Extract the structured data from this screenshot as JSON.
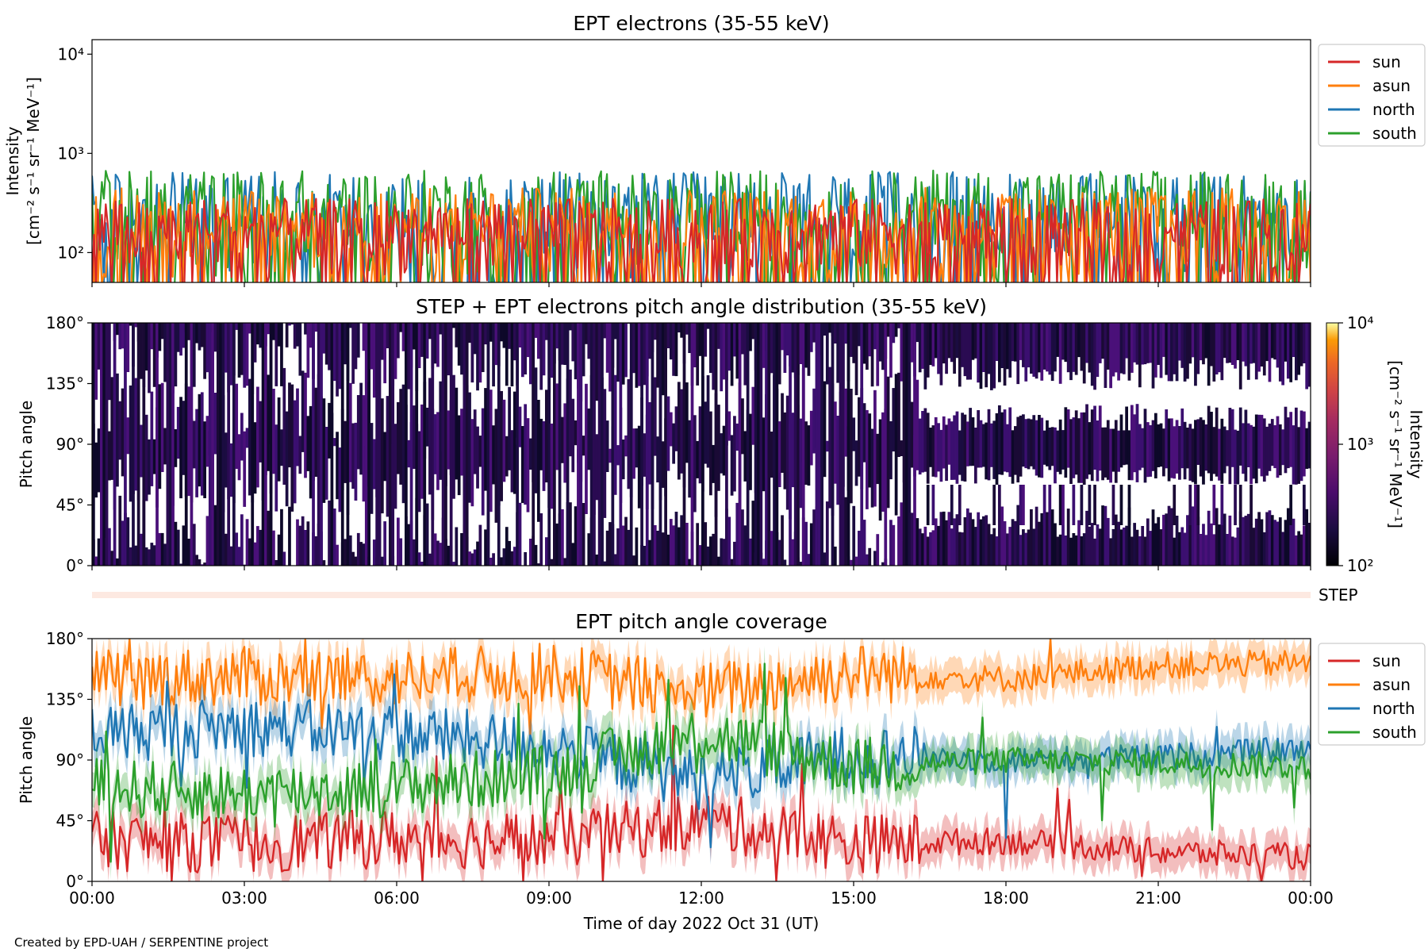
{
  "chart_data": [
    {
      "type": "line",
      "title": "EPT electrons (35-55 keV)",
      "ylabel_line1": "Intensity",
      "ylabel_line2": "[cm⁻² s⁻¹ sr⁻¹ MeV⁻¹]",
      "yscale": "log",
      "ylim": [
        50,
        14000
      ],
      "yticks": [
        "10²",
        "10³",
        "10⁴"
      ],
      "legend_position": "outside-right",
      "series": [
        {
          "name": "sun",
          "color": "#d62728",
          "typical_range": [
            50,
            350
          ]
        },
        {
          "name": "asun",
          "color": "#ff7f0e",
          "typical_range": [
            50,
            450
          ]
        },
        {
          "name": "north",
          "color": "#1f77b4",
          "typical_range": [
            50,
            650
          ]
        },
        {
          "name": "south",
          "color": "#2ca02c",
          "typical_range": [
            50,
            680
          ]
        }
      ]
    },
    {
      "type": "heatmap",
      "title": "STEP + EPT electrons pitch angle distribution (35-55 keV)",
      "ylabel": "Pitch angle",
      "ylim": [
        0,
        180
      ],
      "yticks": [
        "0°",
        "45°",
        "90°",
        "135°",
        "180°"
      ],
      "colorbar": {
        "label_line1": "Intensity",
        "label_line2": "[cm⁻² s⁻¹ sr⁻¹ MeV⁻¹]",
        "scale": "log",
        "range": [
          100,
          10000
        ],
        "ticks": [
          "10²",
          "10³",
          "10⁴"
        ],
        "colormap": "inferno"
      }
    },
    {
      "type": "bar",
      "label": "STEP"
    },
    {
      "type": "line",
      "title": "EPT pitch angle coverage",
      "ylabel": "Pitch angle",
      "ylim": [
        0,
        180
      ],
      "yticks": [
        "0°",
        "45°",
        "90°",
        "135°",
        "180°"
      ],
      "legend_position": "outside-right",
      "series": [
        {
          "name": "sun",
          "color": "#d62728",
          "x": [
            "00:00",
            "03:00",
            "06:00",
            "09:00",
            "12:00",
            "15:00",
            "18:00",
            "21:00",
            "24:00"
          ],
          "y": [
            30,
            28,
            32,
            30,
            45,
            28,
            30,
            22,
            18
          ]
        },
        {
          "name": "asun",
          "color": "#ff7f0e",
          "x": [
            "00:00",
            "03:00",
            "06:00",
            "09:00",
            "12:00",
            "15:00",
            "18:00",
            "21:00",
            "24:00"
          ],
          "y": [
            150,
            152,
            150,
            155,
            140,
            155,
            150,
            160,
            162
          ]
        },
        {
          "name": "north",
          "color": "#1f77b4",
          "x": [
            "00:00",
            "03:00",
            "06:00",
            "09:00",
            "12:00",
            "15:00",
            "18:00",
            "21:00",
            "24:00"
          ],
          "y": [
            110,
            115,
            110,
            100,
            75,
            95,
            90,
            92,
            98
          ]
        },
        {
          "name": "south",
          "color": "#2ca02c",
          "x": [
            "00:00",
            "03:00",
            "06:00",
            "09:00",
            "12:00",
            "15:00",
            "18:00",
            "21:00",
            "24:00"
          ],
          "y": [
            70,
            65,
            70,
            80,
            110,
            85,
            90,
            88,
            85
          ]
        }
      ]
    }
  ],
  "x_axis": {
    "ticks": [
      "00:00",
      "03:00",
      "06:00",
      "09:00",
      "12:00",
      "15:00",
      "18:00",
      "21:00",
      "00:00"
    ],
    "label": "Time of day 2022 Oct 31 (UT)"
  },
  "credit": "Created by EPD-UAH / SERPENTINE project"
}
